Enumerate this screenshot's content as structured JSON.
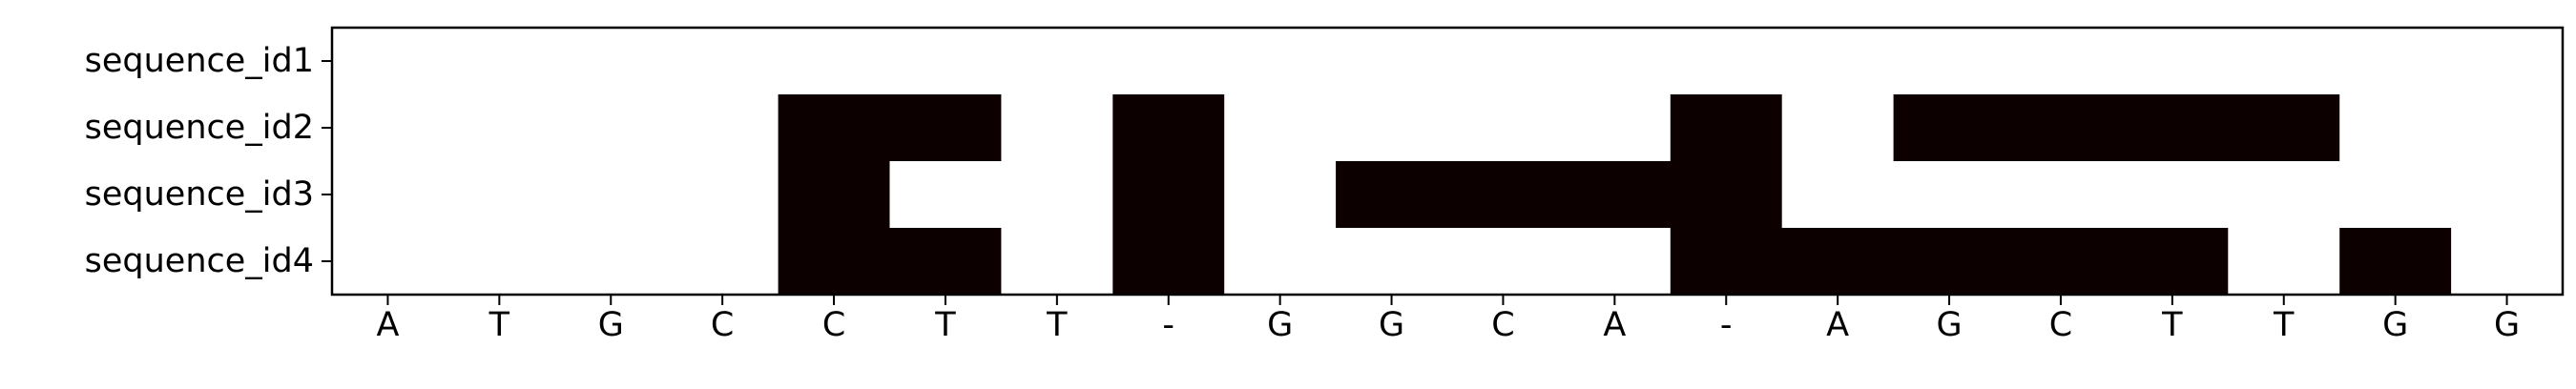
{
  "chart_data": {
    "type": "heatmap",
    "title": "",
    "xlabel": "",
    "ylabel": "",
    "x_categories": [
      "A",
      "T",
      "G",
      "C",
      "C",
      "T",
      "T",
      "-",
      "G",
      "G",
      "C",
      "A",
      "-",
      "A",
      "G",
      "C",
      "T",
      "T",
      "G",
      "G"
    ],
    "y_categories": [
      "sequence_id1",
      "sequence_id2",
      "sequence_id3",
      "sequence_id4"
    ],
    "values": [
      [
        0,
        0,
        0,
        0,
        0,
        0,
        0,
        0,
        0,
        0,
        0,
        0,
        0,
        0,
        0,
        0,
        0,
        0,
        0,
        0
      ],
      [
        0,
        0,
        0,
        0,
        1,
        1,
        0,
        1,
        0,
        0,
        0,
        0,
        1,
        0,
        1,
        1,
        1,
        1,
        0,
        0
      ],
      [
        0,
        0,
        0,
        0,
        1,
        0,
        0,
        1,
        0,
        1,
        1,
        1,
        1,
        0,
        0,
        0,
        0,
        0,
        0,
        0
      ],
      [
        0,
        0,
        0,
        0,
        1,
        1,
        0,
        1,
        0,
        0,
        0,
        0,
        1,
        1,
        1,
        1,
        1,
        0,
        1,
        0
      ]
    ],
    "colors": {
      "match": "#ffffff",
      "mismatch": "#0d0000",
      "frame": "#000000"
    },
    "grid": false,
    "legend": "none"
  }
}
